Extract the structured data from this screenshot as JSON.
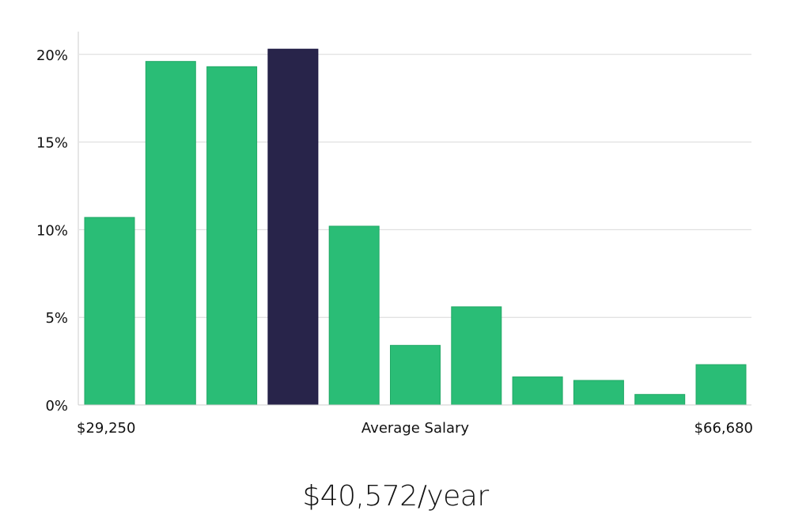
{
  "chart_data": {
    "type": "bar",
    "title": "",
    "xlabel": "Average Salary",
    "ylabel": "",
    "x_min_label": "$29,250",
    "x_max_label": "$66,680",
    "y_tick_labels": [
      "0%",
      "5%",
      "10%",
      "15%",
      "20%"
    ],
    "y_ticks": [
      0,
      5,
      10,
      15,
      20
    ],
    "ylim": [
      0,
      21.3
    ],
    "grid": true,
    "values": [
      10.7,
      19.6,
      19.3,
      20.3,
      10.2,
      3.4,
      5.6,
      1.6,
      1.4,
      0.6,
      2.3
    ],
    "highlight_index": 3,
    "colors": {
      "bar": "#2abd76",
      "highlight": "#28244a",
      "grid": "#d9d9d9",
      "axis": "#cccccc"
    }
  },
  "summary": {
    "salary_text": "$40,572/year"
  }
}
